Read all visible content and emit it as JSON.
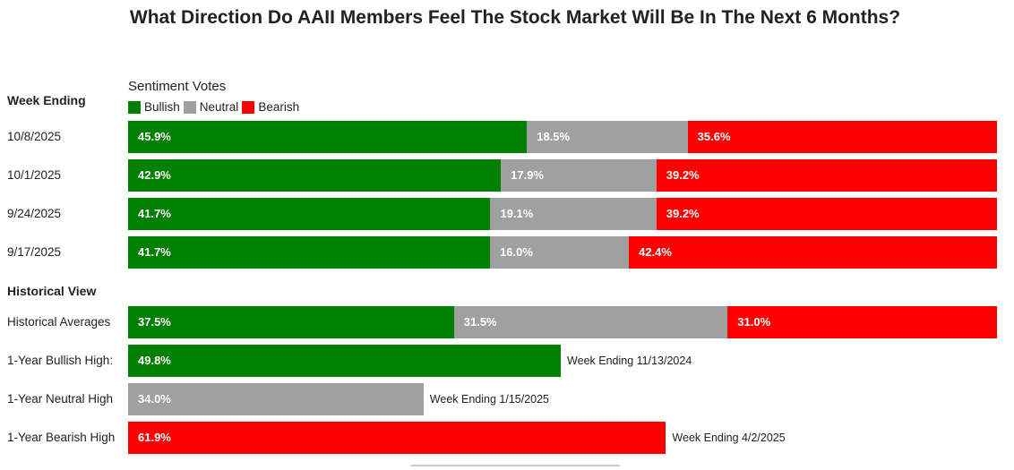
{
  "title": "What Direction Do AAII Members Feel The Stock Market Will Be In The Next 6 Months?",
  "colors": {
    "bullish": "#008000",
    "neutral": "#a0a0a0",
    "bearish": "#ff0000"
  },
  "chart_data": {
    "type": "bar",
    "title": "What Direction Do AAII Members Feel The Stock Market Will Be In The Next 6 Months?",
    "legend_title": "Sentiment Votes",
    "legend_placement": "top-left",
    "series_names": [
      "Bullish",
      "Neutral",
      "Bearish"
    ],
    "week_section_label": "Week Ending",
    "historical_section_label": "Historical View",
    "weeks": [
      {
        "label": "10/8/2025",
        "bullish": 45.9,
        "neutral": 18.5,
        "bearish": 35.6
      },
      {
        "label": "10/1/2025",
        "bullish": 42.9,
        "neutral": 17.9,
        "bearish": 39.2
      },
      {
        "label": "9/24/2025",
        "bullish": 41.7,
        "neutral": 19.1,
        "bearish": 39.2
      },
      {
        "label": "9/17/2025",
        "bullish": 41.7,
        "neutral": 16.0,
        "bearish": 42.4
      }
    ],
    "historical_averages": {
      "label": "Historical Averages",
      "bullish": 37.5,
      "neutral": 31.5,
      "bearish": 31.0
    },
    "highs": [
      {
        "label": "1-Year Bullish High:",
        "kind": "bullish",
        "value": 49.8,
        "note": "Week Ending 11/13/2024"
      },
      {
        "label": "1-Year Neutral High",
        "kind": "neutral",
        "value": 34.0,
        "note": "Week Ending 1/15/2025"
      },
      {
        "label": "1-Year Bearish High",
        "kind": "bearish",
        "value": 61.9,
        "note": "Week Ending 4/2/2025"
      }
    ],
    "xlim": [
      0,
      100
    ]
  }
}
